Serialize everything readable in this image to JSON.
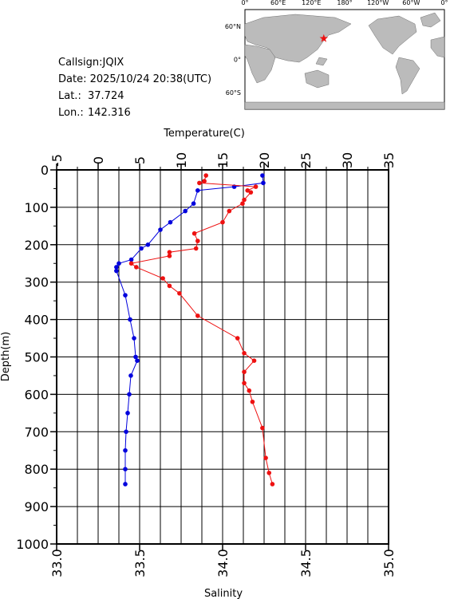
{
  "info": {
    "callsign": "Callsign:JQIX",
    "date": "Date:  2025/10/24 20:38(UTC)",
    "lat_label": "Lat.:",
    "lat": 37.724,
    "lon_label": "Lon.:",
    "lon": 142.316
  },
  "map": {
    "lon_labels": [
      "0°",
      "60°E",
      "120°E",
      "180°",
      "120°W",
      "60°W",
      "0°"
    ],
    "lat_labels": [
      "60°N",
      "0°",
      "60°S"
    ]
  },
  "chart_data": {
    "type": "profile",
    "x2label": "Temperature(C)",
    "xlabel": "Salinity",
    "ylabel": "Depth(m)",
    "x2lim": [
      -5,
      35
    ],
    "x2ticks": [
      -5,
      0,
      5,
      10,
      15,
      20,
      25,
      30,
      35
    ],
    "x2minorticks": [
      -2.5,
      2.5,
      7.5,
      12.5,
      17.5,
      22.5,
      27.5,
      32.5
    ],
    "xlim": [
      33.0,
      35.0
    ],
    "xticks": [
      {
        "value": 33.0,
        "label": "33.0"
      },
      {
        "value": 33.5,
        "label": "33.5"
      },
      {
        "value": 34.0,
        "label": "34.0"
      },
      {
        "value": 34.5,
        "label": "34.5"
      },
      {
        "value": 35.0,
        "label": "35.0"
      }
    ],
    "ylim": [
      0,
      1000
    ],
    "yticks": [
      0,
      100,
      200,
      300,
      400,
      500,
      600,
      700,
      800,
      900,
      1000
    ],
    "yminorticks": [
      50,
      150,
      250,
      350,
      450,
      550,
      650,
      750,
      850,
      950
    ],
    "y_inverted": true,
    "grid": true,
    "series": [
      {
        "axis": "x2",
        "color": "#0000dd",
        "depth": [
          15,
          35,
          45,
          55,
          90,
          110,
          140,
          160,
          200,
          210,
          240,
          250,
          260,
          270,
          335,
          400,
          450,
          500,
          510,
          550,
          600,
          650,
          700,
          750,
          800,
          840
        ],
        "values": [
          19.8,
          19.9,
          16.4,
          12.0,
          11.5,
          10.5,
          8.7,
          7.5,
          6.0,
          5.2,
          4.0,
          2.5,
          2.2,
          2.2,
          3.27,
          3.85,
          4.33,
          4.52,
          4.71,
          3.94,
          3.75,
          3.56,
          3.37,
          3.27,
          3.27,
          3.27
        ]
      },
      {
        "axis": "x",
        "color": "#ee1111",
        "depth": [
          15,
          30,
          35,
          45,
          55,
          60,
          80,
          90,
          110,
          140,
          170,
          190,
          210,
          220,
          230,
          250,
          260,
          290,
          310,
          330,
          390,
          450,
          490,
          510,
          540,
          570,
          590,
          620,
          690,
          770,
          810,
          840
        ],
        "values": [
          33.9,
          33.89,
          33.86,
          34.2,
          34.15,
          34.17,
          34.13,
          34.12,
          34.04,
          34.0,
          33.83,
          33.85,
          33.84,
          33.68,
          33.68,
          33.45,
          33.48,
          33.64,
          33.68,
          33.74,
          33.85,
          34.09,
          34.13,
          34.19,
          34.13,
          34.13,
          34.16,
          34.18,
          34.24,
          34.26,
          34.28,
          34.3
        ]
      }
    ]
  }
}
